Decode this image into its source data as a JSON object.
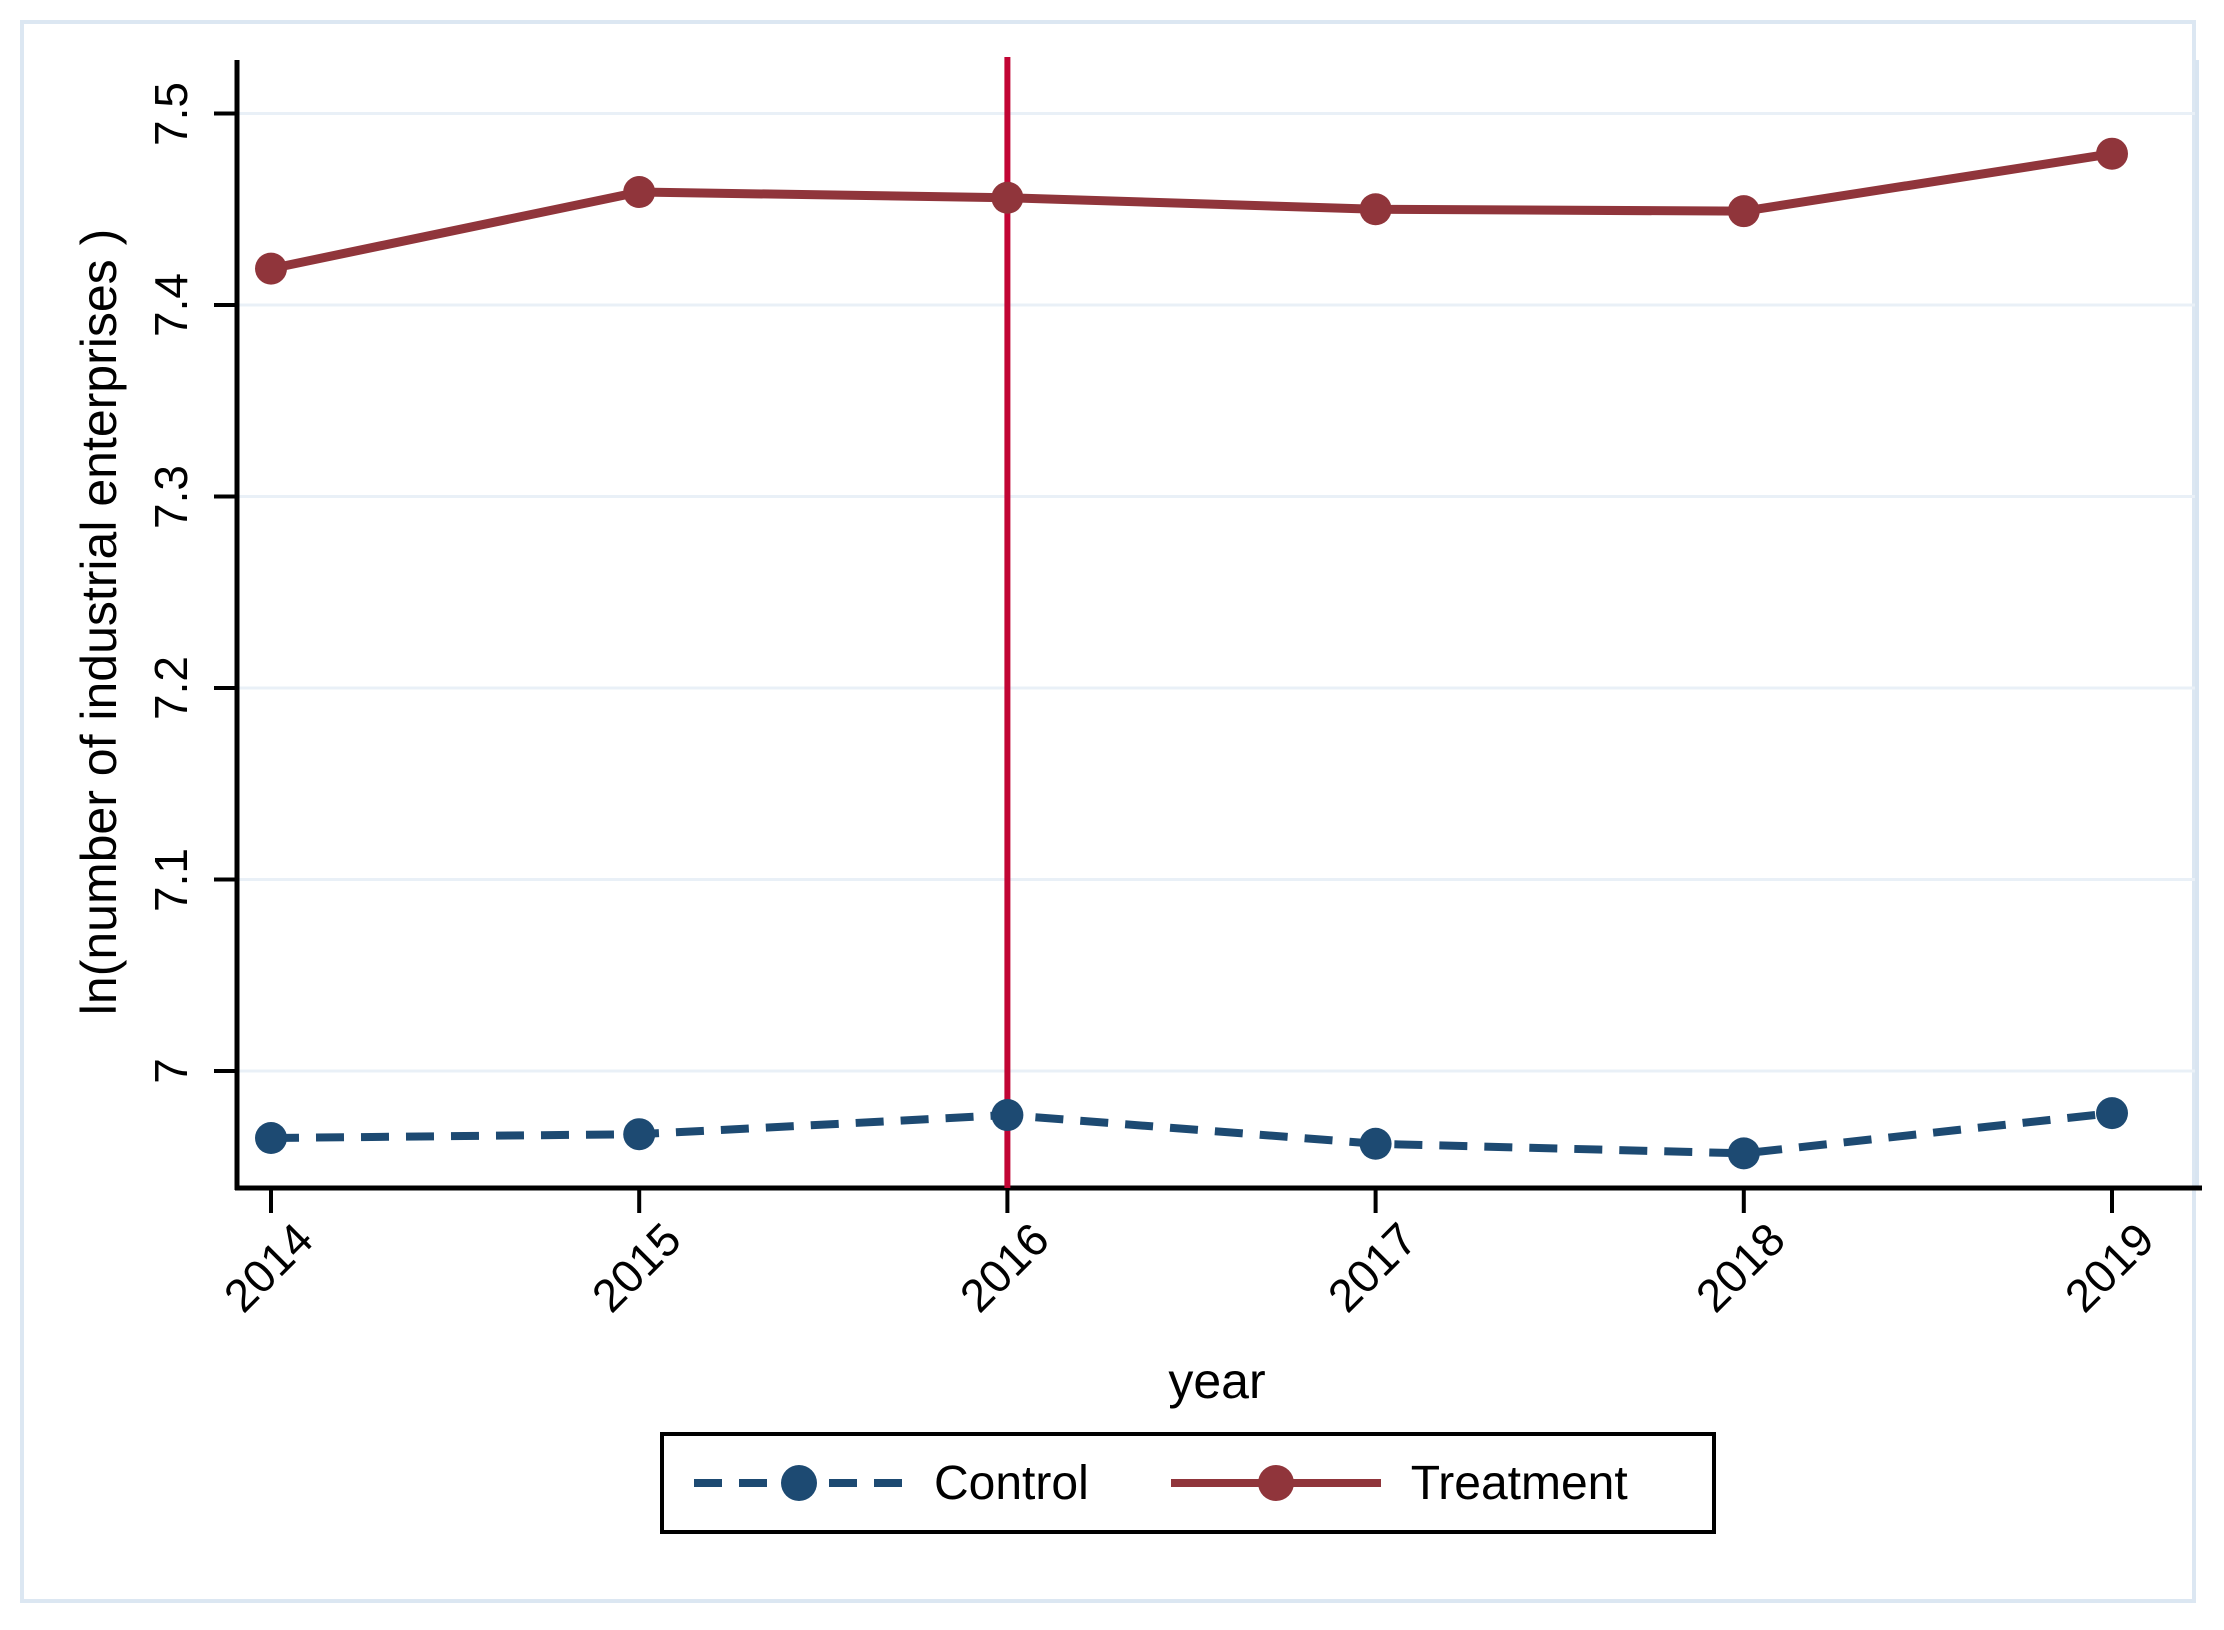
{
  "figure": {
    "background": "#ffffff",
    "frame_border_color": "#dce7f2"
  },
  "chart_data": {
    "type": "line",
    "title": "",
    "xlabel": "year",
    "ylabel": "ln(number of industrial enterprises )",
    "x": [
      2014,
      2015,
      2016,
      2017,
      2018,
      2019
    ],
    "x_tick_labels": [
      "2014",
      "2015",
      "2016",
      "2017",
      "2018",
      "2019"
    ],
    "y_ticks": [
      7,
      7.1,
      7.2,
      7.3,
      7.4,
      7.5
    ],
    "y_tick_labels": [
      "7",
      "7.1",
      "7.2",
      "7.3",
      "7.4",
      "7.5"
    ],
    "ylim": [
      6.94,
      7.53
    ],
    "grid": true,
    "grid_color": "#e9f0f7",
    "plot_border_color": "#d9e5f1",
    "axis_color": "#000000",
    "series": [
      {
        "name": "Control",
        "color": "#1d4a72",
        "line_style": "dashed",
        "marker": "circle",
        "values": [
          6.965,
          6.967,
          6.977,
          6.962,
          6.957,
          6.978
        ]
      },
      {
        "name": "Treatment",
        "color": "#90353B",
        "line_style": "solid",
        "marker": "circle",
        "values": [
          7.419,
          7.459,
          7.456,
          7.45,
          7.449,
          7.479
        ]
      }
    ],
    "vline": {
      "x": 2016,
      "color": "#C10534"
    },
    "legend": {
      "position": "bottom-center",
      "entries": [
        "Control",
        "Treatment"
      ]
    }
  }
}
